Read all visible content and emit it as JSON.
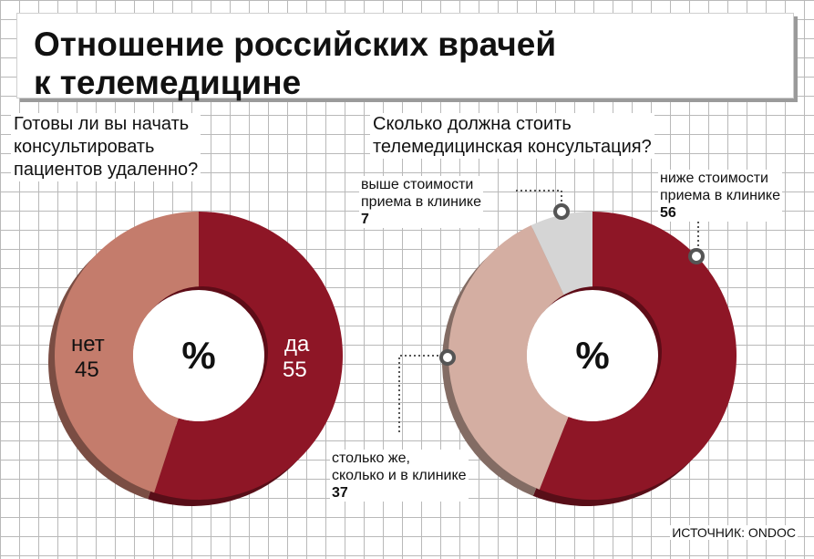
{
  "title_lines": [
    "Отношение российских врачей",
    "к телемедицине"
  ],
  "source": "ИСТОЧНИК: ONDOC",
  "colors": {
    "dark_red": "#8e1626",
    "salmon": "#c47c6c",
    "light_salmon": "#d4aea2",
    "light_gray": "#d5d5d5"
  },
  "chart_data": [
    {
      "type": "pie",
      "question_lines": [
        "Готовы ли вы начать",
        "консультировать",
        "пациентов удаленно?"
      ],
      "center_label": "%",
      "slices": [
        {
          "label": "да",
          "value": 55,
          "color": "#8e1626"
        },
        {
          "label": "нет",
          "value": 45,
          "color": "#c47c6c"
        }
      ]
    },
    {
      "type": "pie",
      "question_lines": [
        "Сколько должна стоить",
        "телемедицинская консультация?"
      ],
      "center_label": "%",
      "slices": [
        {
          "label_lines": [
            "ниже стоимости",
            "приема в клинике"
          ],
          "value": 56,
          "color": "#8e1626"
        },
        {
          "label_lines": [
            "столько же,",
            "сколько и в клинике"
          ],
          "value": 37,
          "color": "#d4aea2"
        },
        {
          "label_lines": [
            "выше стоимости",
            "приема в клинике"
          ],
          "value": 7,
          "color": "#d5d5d5"
        }
      ]
    }
  ]
}
